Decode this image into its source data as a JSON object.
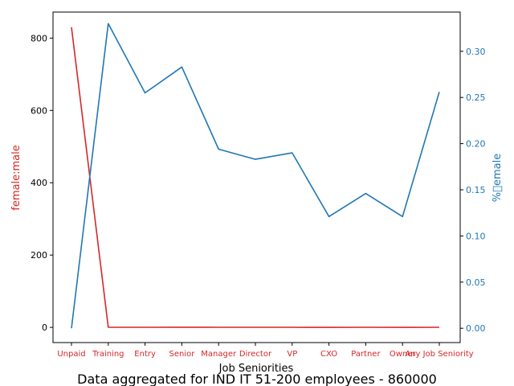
{
  "colors": {
    "left_series": "#d62728",
    "right_series": "#1f77b4",
    "axis": "#000000"
  },
  "chart_data": {
    "type": "line",
    "title": "Data aggregated for IND IT 51-200 employees - 860000",
    "xlabel": "Job Seniorities",
    "ylabel_left": "female:male",
    "ylabel_right": "%\u0000emale",
    "categories": [
      "Unpaid",
      "Training",
      "Entry",
      "Senior",
      "Manager",
      "Director",
      "VP",
      "CXO",
      "Partner",
      "Owner",
      "Any Job Seniority"
    ],
    "ylim_left": [
      -42,
      872
    ],
    "ylim_right": [
      -0.0155,
      0.3425
    ],
    "yticks_left": [
      0,
      200,
      400,
      600,
      800
    ],
    "yticks_right": [
      0.0,
      0.05,
      0.1,
      0.15,
      0.2,
      0.25,
      0.3
    ],
    "ytick_labels_right": [
      "0.00",
      "0.05",
      "0.10",
      "0.15",
      "0.20",
      "0.25",
      "0.30"
    ],
    "series": [
      {
        "axis": "left",
        "values": [
          830,
          0.49,
          0.34,
          0.39,
          0.24,
          0.22,
          0.23,
          0.14,
          0.17,
          0.14,
          0.34
        ]
      },
      {
        "axis": "right",
        "values": [
          0.0,
          0.33,
          0.255,
          0.283,
          0.194,
          0.183,
          0.19,
          0.121,
          0.146,
          0.121,
          0.256
        ]
      }
    ],
    "grid": false
  }
}
